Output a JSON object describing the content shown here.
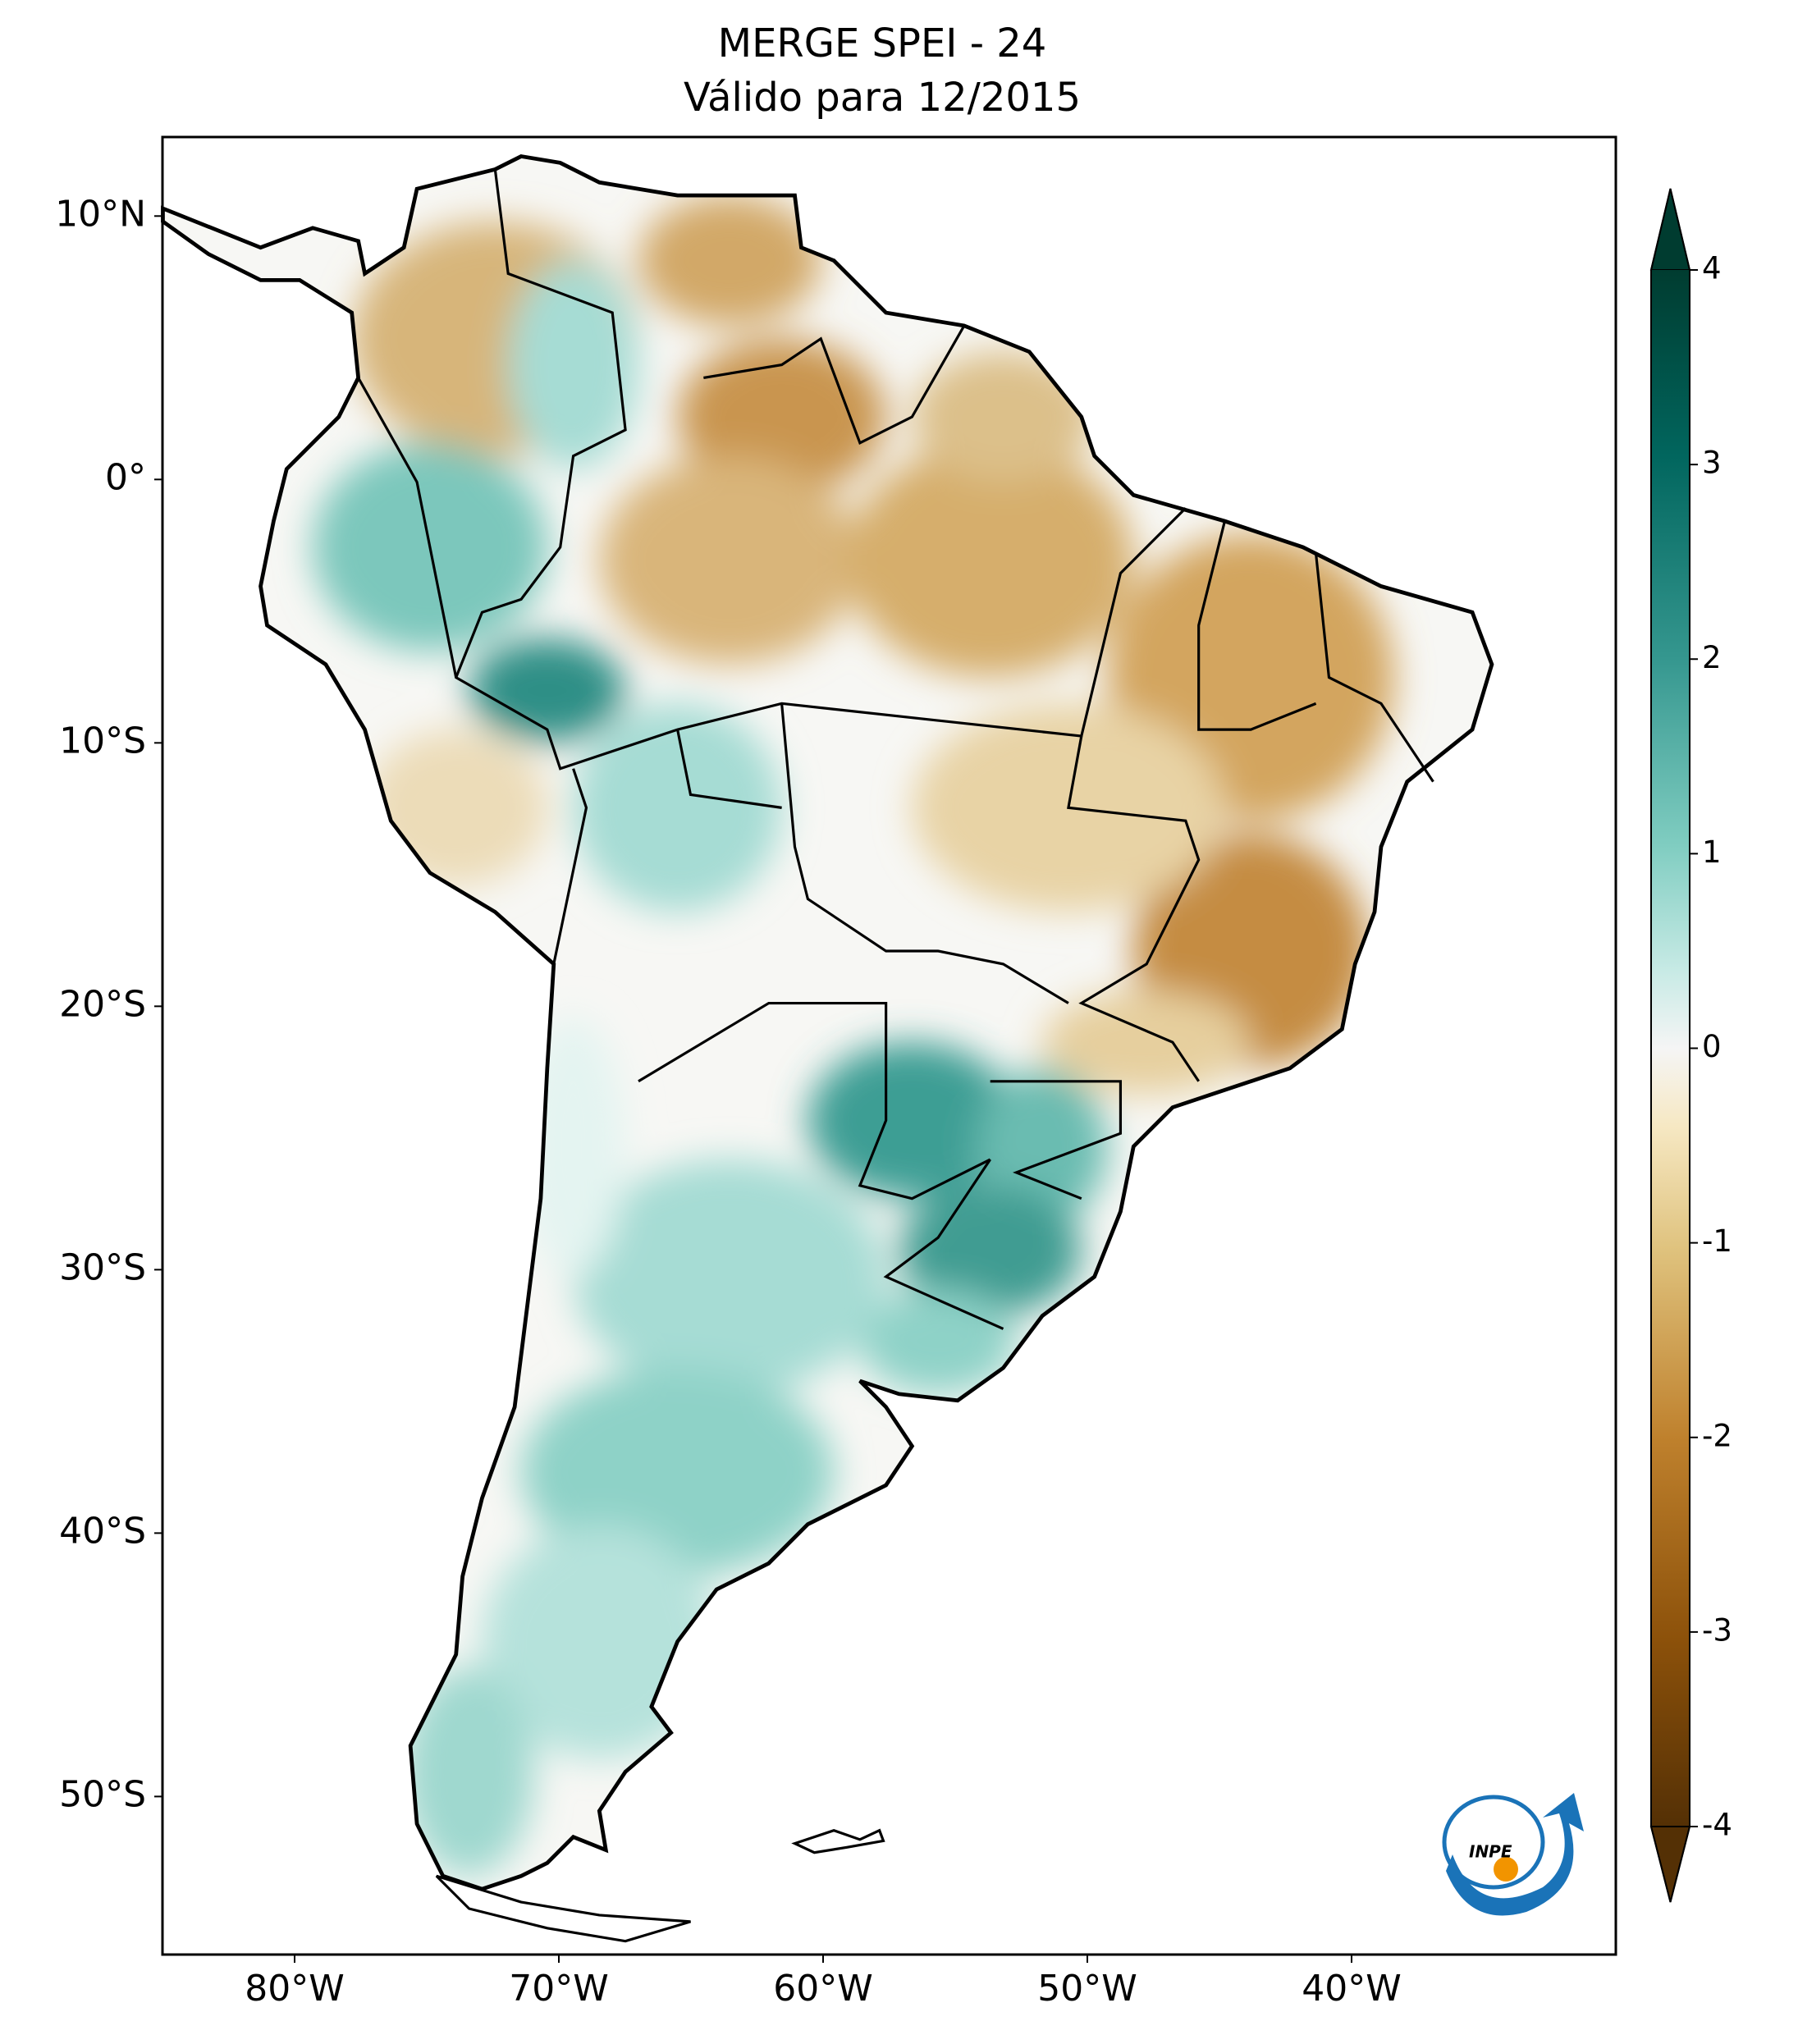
{
  "chart_data": {
    "type": "map",
    "title": "MERGE   SPEI - 24",
    "subtitle": "Válido para 12/2015",
    "xlim": [
      -85,
      -30
    ],
    "ylim": [
      -56,
      13
    ],
    "xticks": [
      {
        "value": -80,
        "label": "80°W"
      },
      {
        "value": -70,
        "label": "70°W"
      },
      {
        "value": -60,
        "label": "60°W"
      },
      {
        "value": -50,
        "label": "50°W"
      },
      {
        "value": -40,
        "label": "40°W"
      }
    ],
    "yticks": [
      {
        "value": 10,
        "label": "10°N"
      },
      {
        "value": 0,
        "label": "0°"
      },
      {
        "value": -10,
        "label": "10°S"
      },
      {
        "value": -20,
        "label": "20°S"
      },
      {
        "value": -30,
        "label": "30°S"
      },
      {
        "value": -40,
        "label": "40°S"
      },
      {
        "value": -50,
        "label": "50°S"
      }
    ],
    "colorbar": {
      "lim": [
        -4,
        4
      ],
      "ticks": [
        4,
        3,
        2,
        1,
        0,
        -1,
        -2,
        -3,
        -4
      ],
      "extend": "both"
    },
    "logo_text": "INPE"
  }
}
